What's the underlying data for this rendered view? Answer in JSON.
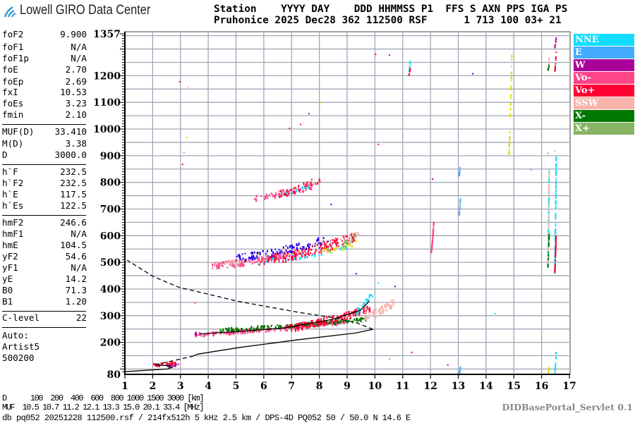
{
  "header": {
    "logo_text": "Lowell GIRO Data Center",
    "line1": "Station    YYYY DAY    DDD HHMMSS P1  FFS S AXN PPS IGA PS",
    "line2": "Pruhonice 2025 Dec28 362 112500 RSF      1 713 100 03+ 21"
  },
  "params": {
    "group1": [
      {
        "label": "foF2",
        "value": "9.900"
      },
      {
        "label": "foF1",
        "value": "N/A"
      },
      {
        "label": "foF1p",
        "value": "N/A"
      },
      {
        "label": "foE",
        "value": "2.70"
      },
      {
        "label": "foEp",
        "value": "2.69"
      },
      {
        "label": "fxI",
        "value": "10.53"
      },
      {
        "label": "foEs",
        "value": "3.23"
      },
      {
        "label": "fmin",
        "value": "2.10"
      }
    ],
    "group2": [
      {
        "label": "MUF(D)",
        "value": "33.410"
      },
      {
        "label": "M(D)",
        "value": "3.38"
      },
      {
        "label": "D",
        "value": "3000.0"
      }
    ],
    "group3": [
      {
        "label": "h`F",
        "value": "232.5"
      },
      {
        "label": "h`F2",
        "value": "232.5"
      },
      {
        "label": "h`E",
        "value": "117.5"
      },
      {
        "label": "h`Es",
        "value": "122.5"
      }
    ],
    "group4": [
      {
        "label": "hmF2",
        "value": "246.6"
      },
      {
        "label": "hmF1",
        "value": "N/A"
      },
      {
        "label": "hmE",
        "value": "104.5"
      },
      {
        "label": "yF2",
        "value": "54.6"
      },
      {
        "label": "yF1",
        "value": "N/A"
      },
      {
        "label": "yE",
        "value": "14.2"
      },
      {
        "label": "B0",
        "value": "71.3"
      },
      {
        "label": "B1",
        "value": "1.20"
      }
    ],
    "group5": [
      {
        "label": "C-level",
        "value": "22"
      }
    ],
    "autoscaling": [
      "Auto:",
      "Artist5",
      "500200"
    ]
  },
  "legend": [
    {
      "label": "NNE",
      "color": "#11ddff"
    },
    {
      "label": "E",
      "color": "#44aaff"
    },
    {
      "label": "W",
      "color": "#aa0099"
    },
    {
      "label": "Vo-",
      "color": "#ff4488"
    },
    {
      "label": "Vo+",
      "color": "#ff0033"
    },
    {
      "label": "SSW",
      "color": "#f8b4ac"
    },
    {
      "label": "X-",
      "color": "#007700"
    },
    {
      "label": "X+",
      "color": "#88b466"
    }
  ],
  "extra_colors": {
    "yellow": "#dddd00",
    "blue": "#2200ee"
  },
  "footer": {
    "d_row": "D      100  200  400  600  800 1000 1500 3000 [km]",
    "muf_row": "MUF  10.5 10.7 11.2 12.1 13.3 15.0 20.1 33.4 [MHz]",
    "db_row": "db pq052 20251228 112500.rsf / 214fx512h 5 kHz 2.5 km / DPS-4D PQ052 50 / 50.0 N 14.6 E",
    "servlet": "DIDBasePortal_Servlet 0.1"
  },
  "chart_data": {
    "type": "scatter",
    "xlabel": "",
    "ylabel": "",
    "xlim": [
      1,
      17
    ],
    "ylim": [
      80,
      1357
    ],
    "x_ticks": [
      "1",
      "2",
      "3",
      "4",
      "5",
      "6",
      "7",
      "8",
      "9",
      "10",
      "11",
      "12",
      "13",
      "14",
      "15",
      "16",
      "17"
    ],
    "y_ticks": [
      "1357",
      "1200",
      "1100",
      "1000",
      "900",
      "800",
      "700",
      "600",
      "500",
      "400",
      "300",
      "200",
      "80"
    ],
    "grid": true,
    "legend_position": "right",
    "profile_solid": [
      [
        1.0,
        90
      ],
      [
        2.53,
        100
      ],
      [
        2.7,
        106
      ],
      [
        2.6,
        112
      ],
      [
        2.09,
        116
      ]
    ],
    "profile_dashed_low": [
      [
        2.09,
        116
      ],
      [
        3.44,
        148
      ]
    ],
    "profile_solid_main": [
      [
        3.44,
        148
      ],
      [
        3.62,
        156
      ],
      [
        5.07,
        180
      ],
      [
        7.18,
        209
      ],
      [
        9.3,
        235
      ],
      [
        9.93,
        249
      ]
    ],
    "profile_dashed_back": [
      [
        9.93,
        249
      ],
      [
        9.3,
        275
      ],
      [
        8.46,
        293
      ],
      [
        7.18,
        314
      ],
      [
        5.07,
        354
      ],
      [
        2.93,
        407
      ],
      [
        2.02,
        447
      ],
      [
        1.08,
        508
      ]
    ],
    "computed_trace": [
      [
        3.7,
        232
      ],
      [
        5.0,
        240
      ],
      [
        6.75,
        254
      ],
      [
        8.46,
        286
      ],
      [
        9.47,
        320
      ],
      [
        9.8,
        355
      ]
    ],
    "echo_clusters": [
      {
        "pol": "Vo-",
        "f": [
          3.5,
          9.0
        ],
        "h": [
          234,
          282
        ],
        "spread": 6,
        "n": 230
      },
      {
        "pol": "X-",
        "f": [
          4.4,
          9.8
        ],
        "h": [
          250,
          292
        ],
        "spread": 7,
        "n": 170
      },
      {
        "pol": "Vo+",
        "f": [
          6.8,
          9.8
        ],
        "h": [
          258,
          330
        ],
        "spread": 12,
        "n": 160
      },
      {
        "pol": "SSW",
        "f": [
          9.6,
          10.7
        ],
        "h": [
          300,
          355
        ],
        "spread": 14,
        "n": 70
      },
      {
        "pol": "NNE",
        "f": [
          9.3,
          9.9
        ],
        "h": [
          320,
          385
        ],
        "spread": 12,
        "n": 25
      },
      {
        "pol": "W",
        "f": [
          3.45,
          3.55
        ],
        "h": [
          225,
          240
        ],
        "spread": 4,
        "n": 6
      },
      {
        "pol": "Vo+",
        "f": [
          2.0,
          2.9
        ],
        "h": [
          118,
          128
        ],
        "spread": 5,
        "n": 30
      },
      {
        "pol": "W",
        "f": [
          2.5,
          2.9
        ],
        "h": [
          115,
          120
        ],
        "spread": 3,
        "n": 10
      },
      {
        "pol": "Vo-",
        "f": [
          4.1,
          7.2
        ],
        "h": [
          490,
          540
        ],
        "spread": 12,
        "n": 140
      },
      {
        "pol": "Vo+",
        "f": [
          5.8,
          9.3
        ],
        "h": [
          505,
          600
        ],
        "spread": 18,
        "n": 160
      },
      {
        "pol": "blue",
        "f": [
          5.0,
          8.3
        ],
        "h": [
          520,
          590
        ],
        "spread": 14,
        "n": 90
      },
      {
        "pol": "SSW",
        "f": [
          4.2,
          9.6
        ],
        "h": [
          495,
          620
        ],
        "spread": 10,
        "n": 50
      },
      {
        "pol": "NNE",
        "f": [
          5.5,
          9.0
        ],
        "h": [
          500,
          560
        ],
        "spread": 10,
        "n": 30
      },
      {
        "pol": "yellow",
        "f": [
          8.0,
          9.3
        ],
        "h": [
          540,
          580
        ],
        "spread": 10,
        "n": 20
      },
      {
        "pol": "X+",
        "f": [
          8.8,
          9.3
        ],
        "h": [
          570,
          600
        ],
        "spread": 10,
        "n": 15
      },
      {
        "pol": "Vo-",
        "f": [
          5.6,
          7.8
        ],
        "h": [
          745,
          790
        ],
        "spread": 10,
        "n": 60
      },
      {
        "pol": "Vo+",
        "f": [
          6.5,
          8.0
        ],
        "h": [
          760,
          815
        ],
        "spread": 12,
        "n": 40
      },
      {
        "pol": "NNE",
        "f": [
          6.8,
          7.6
        ],
        "h": [
          765,
          790
        ],
        "spread": 6,
        "n": 10
      },
      {
        "pol": "Vo-",
        "f": [
          12.0,
          12.1
        ],
        "h": [
          540,
          660
        ],
        "spread": 4,
        "n": 40
      },
      {
        "pol": "E",
        "f": [
          13.0,
          13.05
        ],
        "h": [
          680,
          740
        ],
        "spread": 4,
        "n": 12
      },
      {
        "pol": "E",
        "f": [
          13.0,
          13.05
        ],
        "h": [
          830,
          862
        ],
        "spread": 3,
        "n": 10
      },
      {
        "pol": "E",
        "f": [
          13.0,
          13.05
        ],
        "h": [
          85,
          110
        ],
        "spread": 3,
        "n": 8
      },
      {
        "pol": "yellow",
        "f": [
          14.8,
          14.9
        ],
        "h": [
          910,
          1270
        ],
        "spread": 10,
        "n": 30
      },
      {
        "pol": "NNE",
        "f": [
          16.2,
          16.25
        ],
        "h": [
          490,
          870
        ],
        "spread": 5,
        "n": 90
      },
      {
        "pol": "SSW",
        "f": [
          16.2,
          16.25
        ],
        "h": [
          500,
          860
        ],
        "spread": 5,
        "n": 35
      },
      {
        "pol": "X-",
        "f": [
          16.2,
          16.25
        ],
        "h": [
          490,
          620
        ],
        "spread": 5,
        "n": 15
      },
      {
        "pol": "NNE",
        "f": [
          16.45,
          16.5
        ],
        "h": [
          470,
          900
        ],
        "spread": 5,
        "n": 90
      },
      {
        "pol": "Vo+",
        "f": [
          16.45,
          16.5
        ],
        "h": [
          470,
          620
        ],
        "spread": 5,
        "n": 35
      },
      {
        "pol": "SSW",
        "f": [
          16.2,
          16.25
        ],
        "h": [
          1230,
          1265
        ],
        "spread": 5,
        "n": 8
      },
      {
        "pol": "X-",
        "f": [
          16.2,
          16.25
        ],
        "h": [
          1225,
          1245
        ],
        "spread": 3,
        "n": 4
      },
      {
        "pol": "Vo+",
        "f": [
          16.45,
          16.5
        ],
        "h": [
          1220,
          1290
        ],
        "spread": 5,
        "n": 12
      },
      {
        "pol": "W",
        "f": [
          16.45,
          16.5
        ],
        "h": [
          1310,
          1345
        ],
        "spread": 3,
        "n": 5
      },
      {
        "pol": "NNE",
        "f": [
          11.2,
          11.25
        ],
        "h": [
          1220,
          1265
        ],
        "spread": 4,
        "n": 6
      },
      {
        "pol": "Vo+",
        "f": [
          11.2,
          11.25
        ],
        "h": [
          1210,
          1230
        ],
        "spread": 3,
        "n": 3
      },
      {
        "pol": "NNE",
        "f": [
          16.45,
          16.5
        ],
        "h": [
          85,
          170
        ],
        "spread": 4,
        "n": 12
      },
      {
        "pol": "yellow",
        "f": [
          16.2,
          16.25
        ],
        "h": [
          85,
          115
        ],
        "spread": 3,
        "n": 5
      }
    ],
    "isolated_echoes": [
      {
        "pol": "Vo+",
        "f": [
          6.9,
          1005
        ]
      },
      {
        "pol": "Vo+",
        "f": [
          7.3,
          1020
        ]
      },
      {
        "pol": "W",
        "f": [
          7.6,
          1060
        ]
      },
      {
        "pol": "yellow",
        "f": [
          8.0,
          1100
        ]
      },
      {
        "pol": "Vo+",
        "f": [
          10.1,
          945
        ]
      },
      {
        "pol": "W",
        "f": [
          10.5,
          1280
        ]
      },
      {
        "pol": "Vo+",
        "f": [
          10.0,
          1283
        ]
      },
      {
        "pol": "Vo+",
        "f": [
          2.95,
          1180
        ]
      },
      {
        "pol": "SSW",
        "f": [
          3.25,
          1160
        ]
      },
      {
        "pol": "yellow",
        "f": [
          3.2,
          970
        ]
      },
      {
        "pol": "E",
        "f": [
          3.1,
          915
        ]
      },
      {
        "pol": "Vo+",
        "f": [
          3.05,
          870
        ]
      },
      {
        "pol": "Vo-",
        "f": [
          3.5,
          350
        ]
      },
      {
        "pol": "blue",
        "f": [
          8.4,
          720
        ]
      },
      {
        "pol": "blue",
        "f": [
          9.3,
          460
        ]
      },
      {
        "pol": "NNE",
        "f": [
          10.1,
          425
        ]
      },
      {
        "pol": "blue",
        "f": [
          10.7,
          412
        ]
      },
      {
        "pol": "NNE",
        "f": [
          14.3,
          310
        ]
      },
      {
        "pol": "X+",
        "f": [
          10.5,
          140
        ]
      },
      {
        "pol": "W",
        "f": [
          12.6,
          118
        ]
      },
      {
        "pol": "Vo+",
        "f": [
          11.3,
          165
        ]
      },
      {
        "pol": "yellow",
        "f": [
          5.8,
          535
        ]
      },
      {
        "pol": "W",
        "f": [
          12.05,
          815
        ]
      },
      {
        "pol": "blue",
        "f": [
          13.5,
          1210
        ]
      },
      {
        "pol": "E",
        "f": [
          15.6,
          850
        ]
      },
      {
        "pol": "X+",
        "f": [
          16.2,
          912
        ]
      },
      {
        "pol": "SSW",
        "f": [
          16.45,
          920
        ]
      }
    ]
  }
}
